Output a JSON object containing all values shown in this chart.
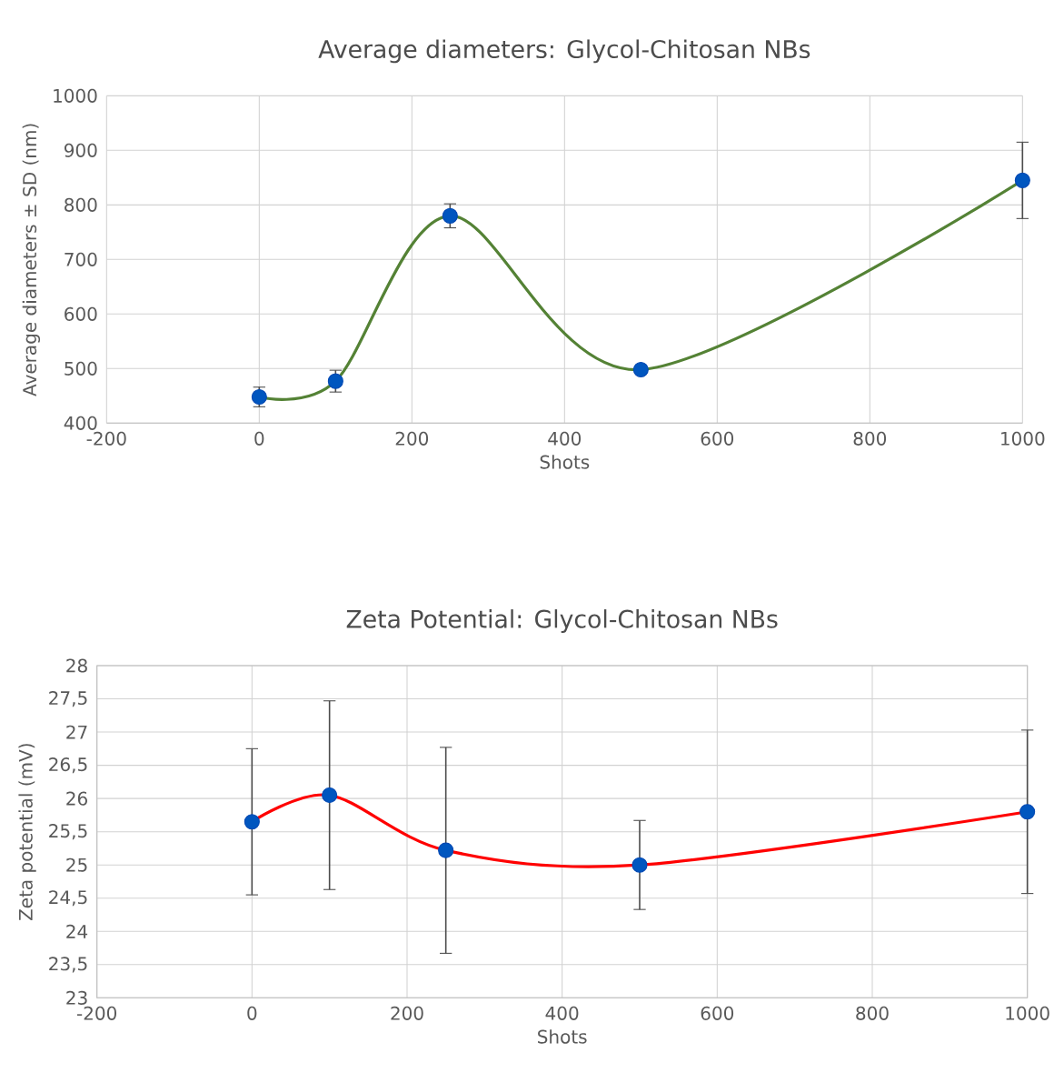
{
  "chart_data": [
    {
      "type": "line",
      "title": "Average diameters: Glycol-Chitosan NBs",
      "xlabel": "Shots",
      "ylabel": "Average diameters ± SD (nm)",
      "x": [
        0,
        100,
        250,
        500,
        1000
      ],
      "series": [
        {
          "color": "#548235",
          "values": [
            448,
            477,
            780,
            498,
            845
          ],
          "errors": [
            18,
            20,
            22,
            null,
            70
          ]
        }
      ],
      "xlim": [
        -200,
        1000
      ],
      "xticks": [
        -200,
        0,
        200,
        400,
        600,
        800,
        1000
      ],
      "ylim": [
        400,
        1000
      ],
      "yticks": [
        400,
        500,
        600,
        700,
        800,
        900,
        1000
      ],
      "grid": true,
      "marker": "circle",
      "line_style": "solid"
    },
    {
      "type": "line",
      "title": "Zeta Potential: Glycol-Chitosan NBs",
      "xlabel": "Shots",
      "ylabel": "Zeta potential (mV)",
      "x": [
        0,
        100,
        250,
        500,
        1000
      ],
      "series": [
        {
          "color": "#ff0000",
          "values": [
            25.65,
            26.05,
            25.22,
            25.0,
            25.8
          ],
          "errors": [
            1.1,
            1.42,
            1.55,
            0.67,
            1.23
          ]
        }
      ],
      "xlim": [
        -200,
        1000
      ],
      "xticks": [
        -200,
        0,
        200,
        400,
        600,
        800,
        1000
      ],
      "ylim": [
        23,
        28
      ],
      "yticks": [
        23,
        {
          "value": 23.5,
          "label": "23,5"
        },
        24,
        {
          "value": 24.5,
          "label": "24,5"
        },
        25,
        {
          "value": 25.5,
          "label": "25,5"
        },
        26,
        {
          "value": 26.5,
          "label": "26,5"
        },
        27,
        {
          "value": 27.5,
          "label": "27,5"
        },
        28
      ],
      "grid": true,
      "marker": "circle",
      "line_style": "solid"
    }
  ]
}
